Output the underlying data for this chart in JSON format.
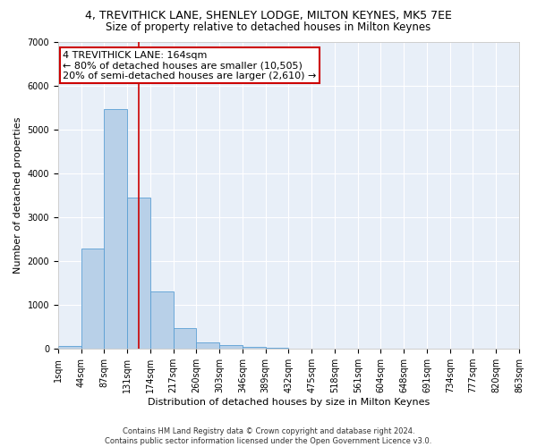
{
  "title": "4, TREVITHICK LANE, SHENLEY LODGE, MILTON KEYNES, MK5 7EE",
  "subtitle": "Size of property relative to detached houses in Milton Keynes",
  "xlabel": "Distribution of detached houses by size in Milton Keynes",
  "ylabel": "Number of detached properties",
  "bar_color": "#b8d0e8",
  "bar_edge_color": "#5a9fd4",
  "vline_color": "#cc0000",
  "vline_x": 3.5,
  "annotation_text": "4 TREVITHICK LANE: 164sqm\n← 80% of detached houses are smaller (10,505)\n20% of semi-detached houses are larger (2,610) →",
  "annotation_box_color": "#cc0000",
  "bins": [
    "1sqm",
    "44sqm",
    "87sqm",
    "131sqm",
    "174sqm",
    "217sqm",
    "260sqm",
    "303sqm",
    "346sqm",
    "389sqm",
    "432sqm",
    "475sqm",
    "518sqm",
    "561sqm",
    "604sqm",
    "648sqm",
    "691sqm",
    "734sqm",
    "777sqm",
    "820sqm",
    "863sqm"
  ],
  "values": [
    75,
    2280,
    5470,
    3440,
    1310,
    470,
    155,
    85,
    55,
    30,
    0,
    0,
    0,
    0,
    0,
    0,
    0,
    0,
    0,
    0
  ],
  "ylim": [
    0,
    7000
  ],
  "yticks": [
    0,
    1000,
    2000,
    3000,
    4000,
    5000,
    6000,
    7000
  ],
  "background_color": "#e8eff8",
  "grid_color": "#ffffff",
  "footer": "Contains HM Land Registry data © Crown copyright and database right 2024.\nContains public sector information licensed under the Open Government Licence v3.0.",
  "title_fontsize": 9,
  "subtitle_fontsize": 8.5,
  "xlabel_fontsize": 8,
  "ylabel_fontsize": 8,
  "tick_fontsize": 7,
  "footer_fontsize": 6,
  "annot_fontsize": 8
}
